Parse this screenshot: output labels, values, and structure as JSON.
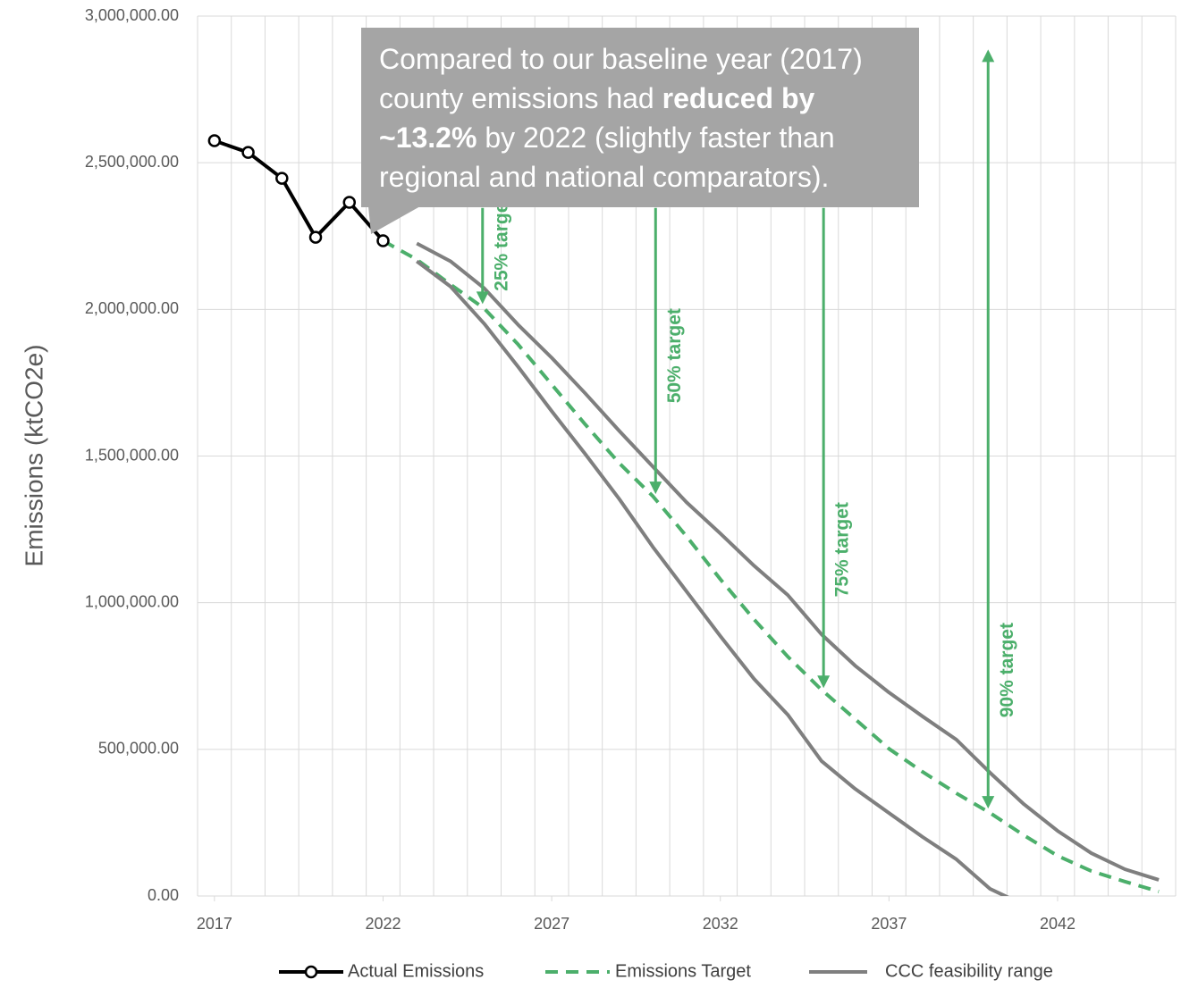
{
  "chart_data": {
    "type": "line",
    "y_axis_label": "Emissions (ktCO2e)",
    "x": [
      2017,
      2018,
      2019,
      2020,
      2021,
      2022,
      2023,
      2024,
      2025,
      2026,
      2027,
      2028,
      2029,
      2030,
      2031,
      2032,
      2033,
      2034,
      2035,
      2036,
      2037,
      2038,
      2039,
      2040,
      2041,
      2042,
      2043,
      2044,
      2045
    ],
    "xlim": [
      2016.5,
      2045.5
    ],
    "xticks": [
      2017,
      2022,
      2027,
      2032,
      2037,
      2042
    ],
    "x_minor_ticks": [
      2016.5,
      2017.5,
      2018.5,
      2019.5,
      2020.5,
      2021.5,
      2022.5,
      2023.5,
      2024.5,
      2025.5,
      2026.5,
      2027.5,
      2028.5,
      2029.5,
      2030.5,
      2031.5,
      2032.5,
      2033.5,
      2034.5,
      2035.5,
      2036.5,
      2037.5,
      2038.5,
      2039.5,
      2040.5,
      2041.5,
      2042.5,
      2043.5,
      2044.5,
      2045.5
    ],
    "ylim": [
      0,
      3000000
    ],
    "yticks": [
      {
        "value": 0,
        "label": "0.00"
      },
      {
        "value": 500000,
        "label": "500,000.00"
      },
      {
        "value": 1000000,
        "label": "1,000,000.00"
      },
      {
        "value": 1500000,
        "label": "1,500,000.00"
      },
      {
        "value": 2000000,
        "label": "2,000,000.00"
      },
      {
        "value": 2500000,
        "label": "2,500,000.00"
      },
      {
        "value": 3000000,
        "label": "3,000,000.00"
      }
    ],
    "grid": true,
    "legend": "bottom",
    "series": [
      {
        "name": "Actual Emissions",
        "color": "#000000",
        "style": "solid-markers",
        "values": [
          2575000,
          2535000,
          2447000,
          2246000,
          2365000,
          2234000,
          null,
          null,
          null,
          null,
          null,
          null,
          null,
          null,
          null,
          null,
          null,
          null,
          null,
          null,
          null,
          null,
          null,
          null,
          null,
          null,
          null,
          null,
          null
        ]
      },
      {
        "name": "Emissions Target",
        "color": "#4caf6b",
        "style": "dashed",
        "values": [
          null,
          null,
          null,
          null,
          null,
          2234000,
          2170000,
          2085000,
          2003000,
          1881000,
          1744000,
          1607000,
          1476000,
          1363000,
          1226000,
          1080000,
          943000,
          816000,
          703000,
          603000,
          502000,
          423000,
          350000,
          283000,
          207000,
          137000,
          85000,
          49000,
          15000
        ]
      },
      {
        "name": "CCC feasibility range",
        "color": "#7f7f7f",
        "style": "range",
        "values_upper": [
          null,
          null,
          null,
          null,
          null,
          null,
          2225000,
          2164000,
          2072000,
          1948000,
          1835000,
          1713000,
          1586000,
          1464000,
          1342000,
          1236000,
          1126000,
          1026000,
          892000,
          785000,
          694000,
          612000,
          533000,
          420000,
          313000,
          222000,
          146000,
          91000,
          55000
        ],
        "values_lower": [
          null,
          null,
          null,
          null,
          null,
          null,
          2164000,
          2078000,
          1951000,
          1805000,
          1653000,
          1506000,
          1354000,
          1190000,
          1038000,
          886000,
          740000,
          618000,
          460000,
          365000,
          283000,
          201000,
          125000,
          24000,
          -30000,
          null,
          null,
          null,
          null
        ]
      }
    ],
    "annotations": [
      {
        "text": "25% target",
        "x": 2024.95,
        "y_from": 2346000,
        "y_to": 2018000,
        "heads": "end"
      },
      {
        "text": "50% target",
        "x": 2030.08,
        "y_from": 2346000,
        "y_to": 1370000,
        "heads": "end"
      },
      {
        "text": "75% target",
        "x": 2035.06,
        "y_from": 2346000,
        "y_to": 709000,
        "heads": "end"
      },
      {
        "text": "90% target",
        "x": 2039.94,
        "y_from": 2886000,
        "y_to": 298000,
        "heads": "both"
      }
    ],
    "annotation_color": "#4caf6b",
    "callout": {
      "parts": [
        {
          "text": "Compared to our baseline year (2017) county emissions had ",
          "bold": false
        },
        {
          "text": "reduced by ~13.2%",
          "bold": true
        },
        {
          "text": " by 2022 (slightly faster than regional and national comparators).",
          "bold": false
        }
      ]
    }
  }
}
